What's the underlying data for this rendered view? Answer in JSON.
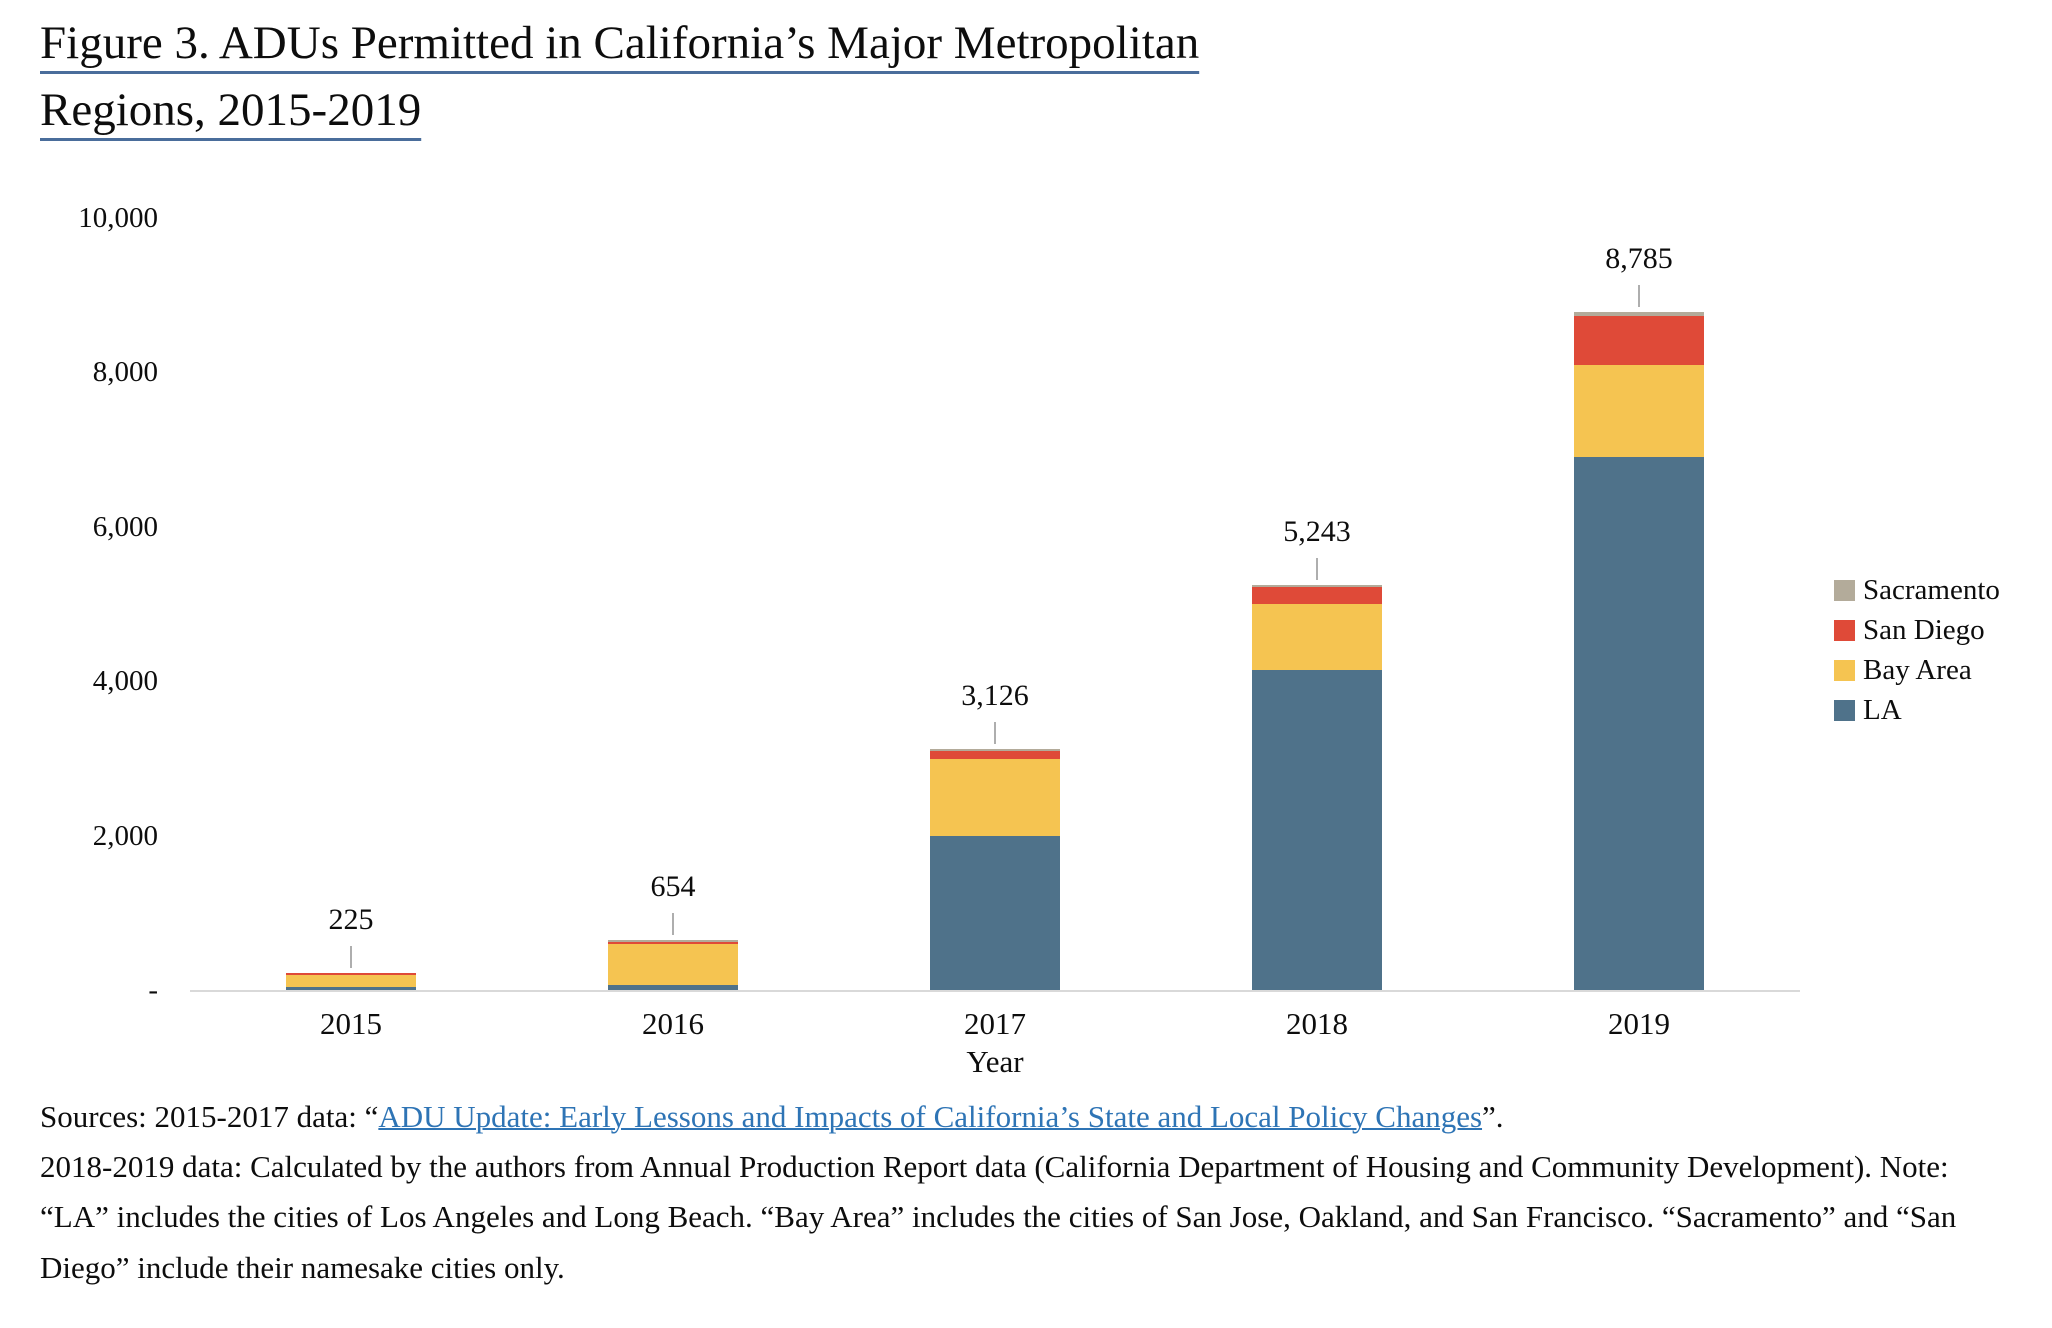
{
  "title": {
    "line1": "Figure 3. ADUs Permitted in California’s Major Metropolitan",
    "line2": "Regions, 2015-2019"
  },
  "chart_data": {
    "type": "bar",
    "stacked": true,
    "title": "Figure 3. ADUs Permitted in California's Major Metropolitan Regions, 2015-2019",
    "xlabel": "Year",
    "ylabel": "",
    "ylim": [
      0,
      10000
    ],
    "grid": false,
    "legend_position": "right",
    "categories": [
      "2015",
      "2016",
      "2017",
      "2018",
      "2019"
    ],
    "series": [
      {
        "name": "LA",
        "color": "#4f728a",
        "values": [
          45,
          60,
          2000,
          4150,
          6900
        ]
      },
      {
        "name": "Bay Area",
        "color": "#f5c451",
        "values": [
          150,
          540,
          990,
          850,
          1195
        ]
      },
      {
        "name": "San Diego",
        "color": "#df4a38",
        "values": [
          20,
          27,
          100,
          220,
          630
        ]
      },
      {
        "name": "Sacramento",
        "color": "#b3ab9a",
        "values": [
          10,
          27,
          36,
          23,
          60
        ]
      }
    ],
    "stack_order_note": "series listed bottom-to-top; legend shown top-to-bottom reversed",
    "totals": [
      225,
      654,
      3126,
      5243,
      8785
    ],
    "total_labels": [
      "225",
      "654",
      "3,126",
      "5,243",
      "8,785"
    ],
    "yticks": [
      {
        "label": "10,000",
        "value": 10000
      },
      {
        "label": "8,000",
        "value": 8000
      },
      {
        "label": "6,000",
        "value": 6000
      },
      {
        "label": "4,000",
        "value": 4000
      },
      {
        "label": "2,000",
        "value": 2000
      },
      {
        "label": "-",
        "value": 0
      }
    ],
    "colors": {
      "axis_line": "#d9d9d9",
      "leader_line": "#aeaeae",
      "text": "#0d0d0d"
    }
  },
  "xaxis": {
    "title": "Year"
  },
  "sources": {
    "lead": "Sources: 2015-2017 data: “",
    "link_text": "ADU Update: Early Lessons and Impacts of California’s State and Local Policy Changes",
    "after_link": "”.",
    "body": "2018-2019 data: Calculated by the authors from Annual Production Report data (California Department of Housing and Community Development). Note: “LA” includes the cities of Los Angeles and Long Beach. “Bay Area” includes the cities of San Jose, Oakland, and San Francisco. “Sacramento” and “San Diego” include their namesake cities only."
  },
  "style": {
    "title_underline_color": "#4a6d9b",
    "link_color": "#2e74b5"
  }
}
